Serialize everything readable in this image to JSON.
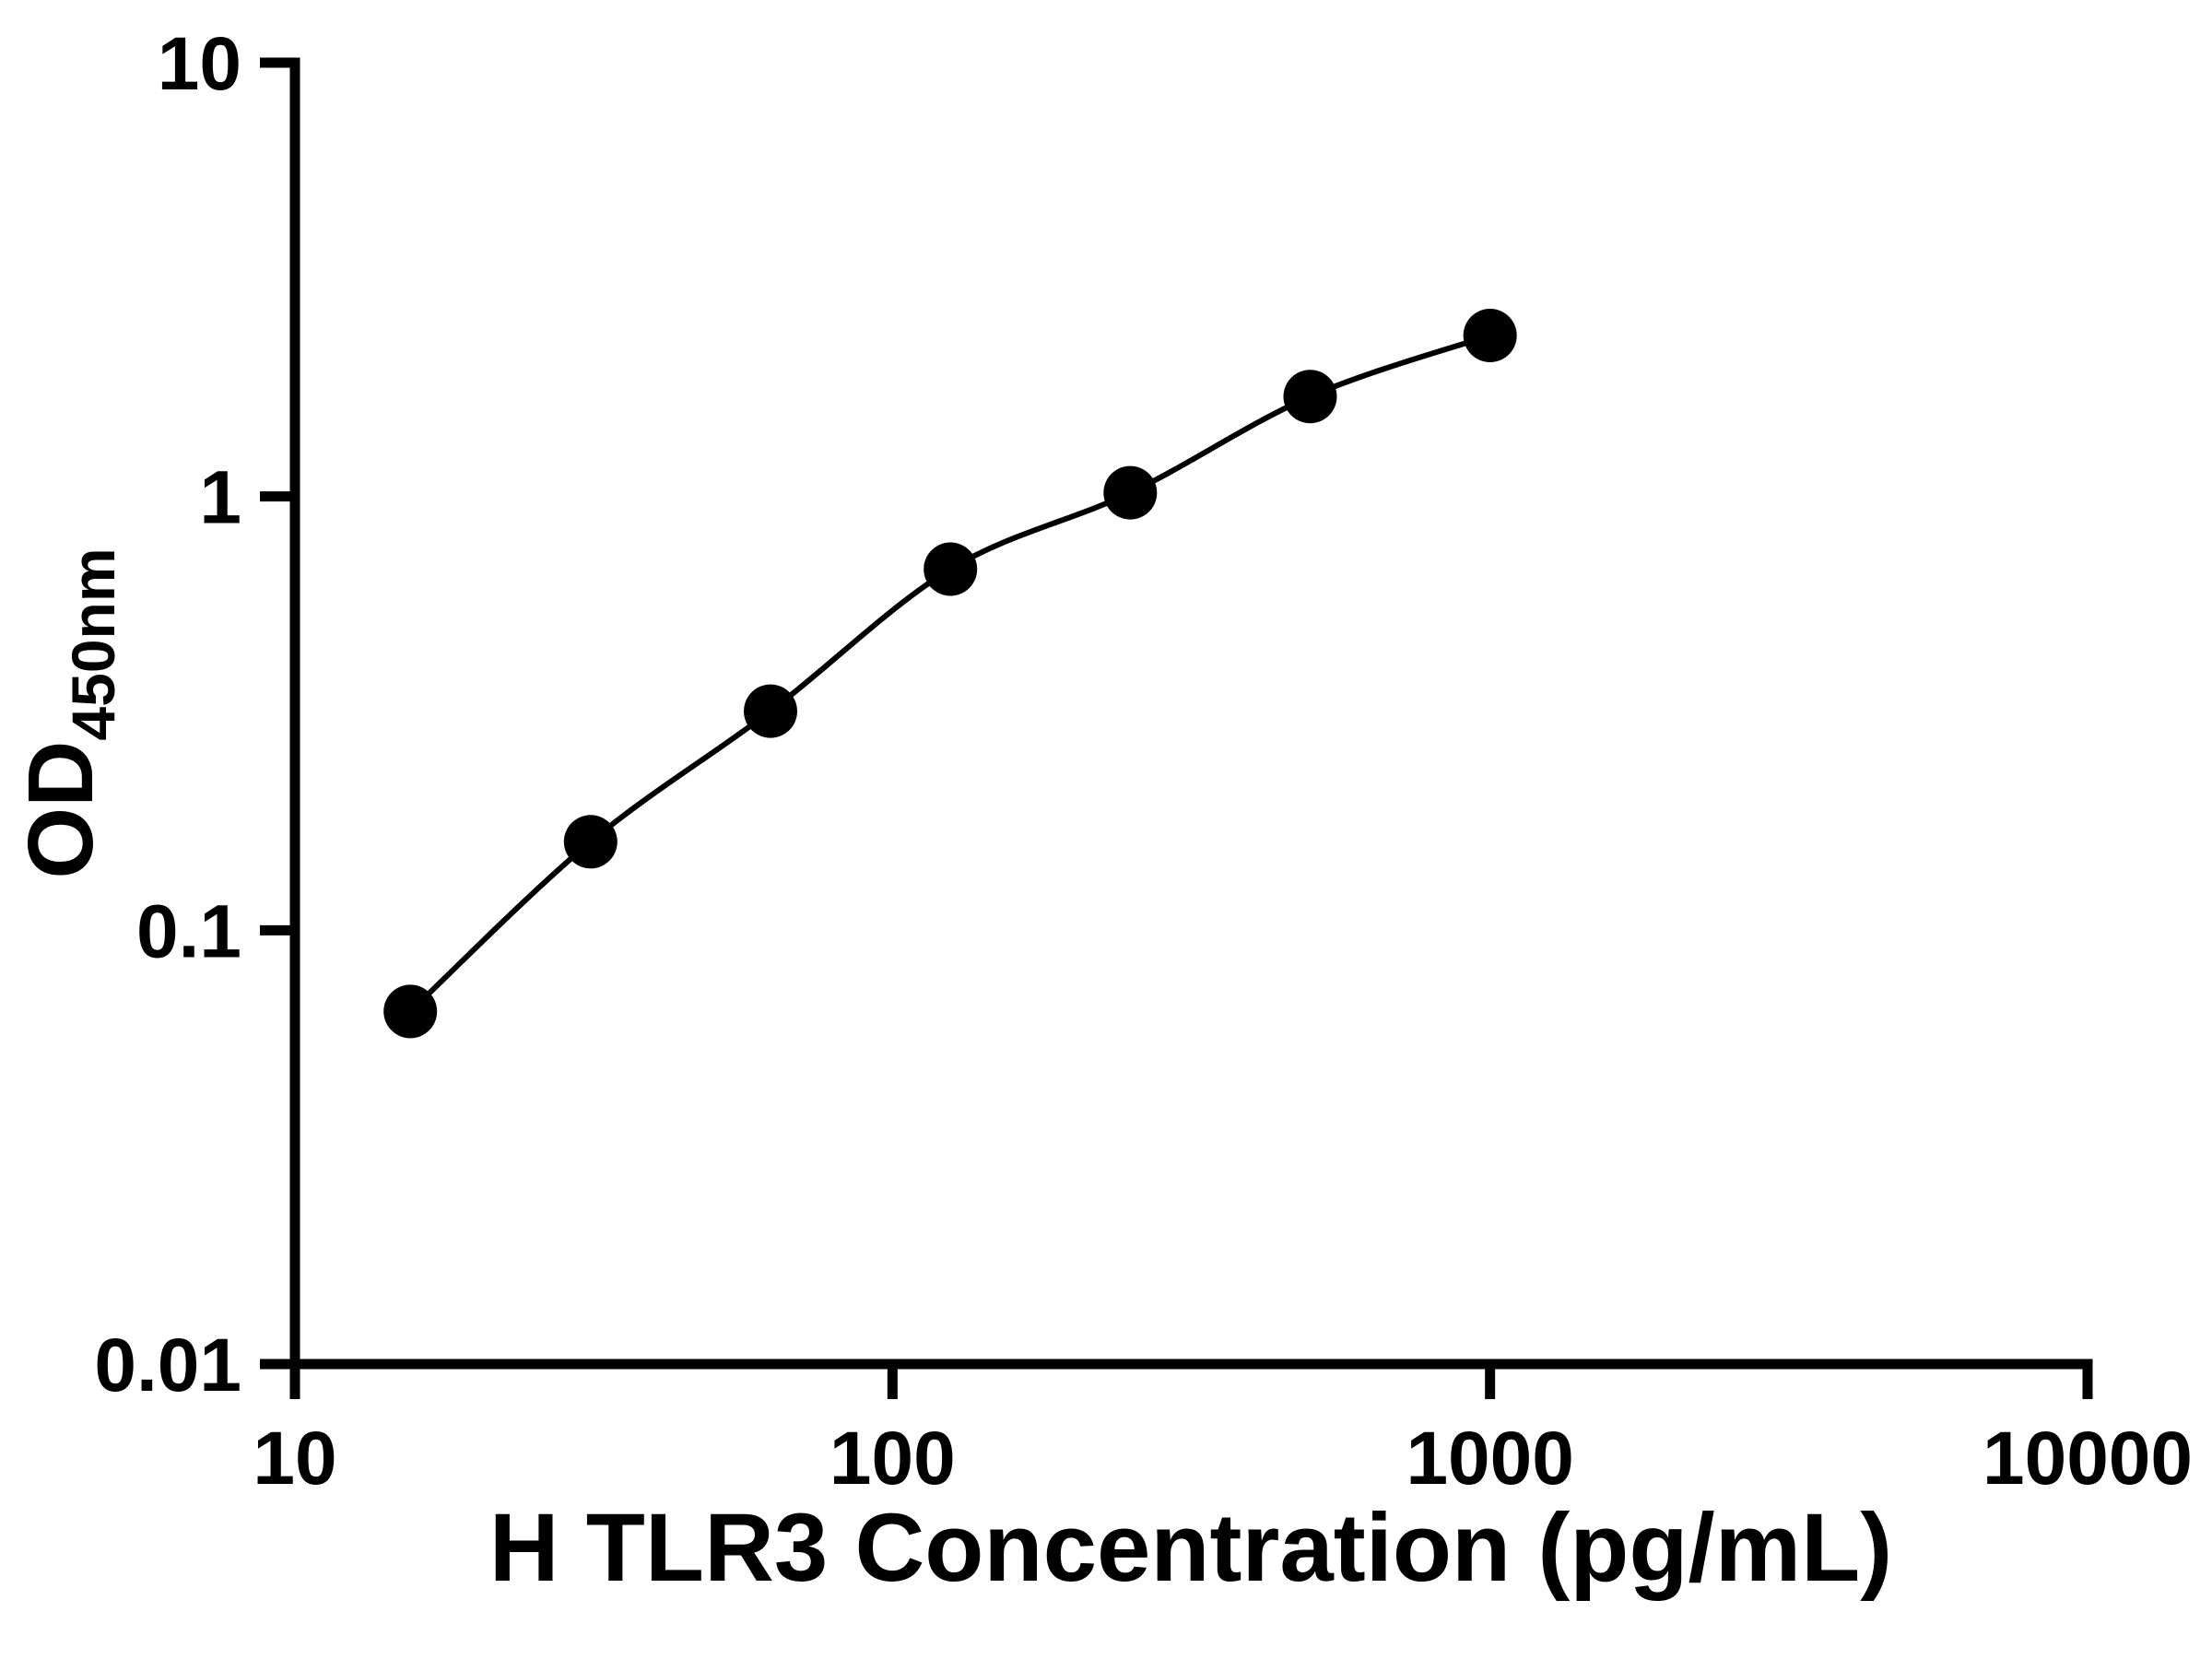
{
  "chart_data": {
    "type": "scatter",
    "subtype": "log-log standard curve with connecting smooth line",
    "title": "",
    "xlabel": "H TLR3 Concentration (pg/mL)",
    "ylabel_main": "OD",
    "ylabel_sub": "450nm",
    "x_scale": "log",
    "y_scale": "log",
    "xlim": [
      10,
      10000
    ],
    "ylim": [
      0.01,
      10
    ],
    "x_ticks": [
      10,
      100,
      1000,
      10000
    ],
    "x_tick_labels": [
      "10",
      "100",
      "1000",
      "10000"
    ],
    "y_ticks": [
      0.01,
      0.1,
      1,
      10
    ],
    "y_tick_labels": [
      "0.01",
      "0.1",
      "1",
      "10"
    ],
    "grid": false,
    "legend": "none",
    "background_color": "#ffffff",
    "axis_color": "#000000",
    "marker_color": "#000000",
    "line_color": "#000000",
    "series": [
      {
        "name": "standard-curve",
        "marker": "filled-circle",
        "points": [
          {
            "x": 15.6,
            "y": 0.065
          },
          {
            "x": 31.25,
            "y": 0.16
          },
          {
            "x": 62.5,
            "y": 0.32
          },
          {
            "x": 125,
            "y": 0.68
          },
          {
            "x": 250,
            "y": 1.02
          },
          {
            "x": 500,
            "y": 1.7
          },
          {
            "x": 1000,
            "y": 2.35
          }
        ]
      }
    ]
  }
}
